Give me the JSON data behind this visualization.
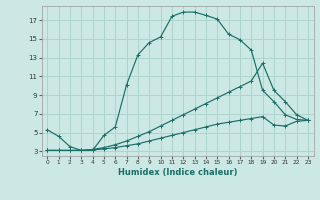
{
  "xlabel": "Humidex (Indice chaleur)",
  "bg_color": "#cce8e4",
  "line_color": "#1a6e68",
  "grid_color": "#aed4ce",
  "xlim": [
    -0.5,
    23.5
  ],
  "ylim": [
    2.5,
    18.5
  ],
  "yticks": [
    3,
    5,
    7,
    9,
    11,
    13,
    15,
    17
  ],
  "xticks": [
    0,
    1,
    2,
    3,
    4,
    5,
    6,
    7,
    8,
    9,
    10,
    11,
    12,
    13,
    14,
    15,
    16,
    17,
    18,
    19,
    20,
    21,
    22,
    23
  ],
  "line1_x": [
    0,
    1,
    2,
    3,
    4,
    5,
    6,
    7,
    8,
    9,
    10,
    11,
    12,
    13,
    14,
    15,
    16,
    17,
    18,
    19,
    20,
    21,
    22,
    23
  ],
  "line1_y": [
    5.3,
    4.6,
    3.5,
    3.1,
    3.1,
    4.7,
    5.6,
    10.1,
    13.3,
    14.6,
    15.2,
    17.4,
    17.85,
    17.85,
    17.5,
    17.1,
    15.5,
    14.9,
    13.8,
    9.5,
    8.3,
    6.9,
    6.4,
    6.3
  ],
  "line2_x": [
    0,
    1,
    2,
    3,
    4,
    5,
    6,
    7,
    8,
    9,
    10,
    11,
    12,
    13,
    14,
    15,
    16,
    17,
    18,
    19,
    20,
    21,
    22,
    23
  ],
  "line2_y": [
    3.1,
    3.1,
    3.1,
    3.1,
    3.2,
    3.4,
    3.7,
    4.1,
    4.6,
    5.1,
    5.7,
    6.3,
    6.9,
    7.5,
    8.1,
    8.7,
    9.3,
    9.9,
    10.5,
    12.4,
    9.5,
    8.3,
    6.9,
    6.3
  ],
  "line3_x": [
    0,
    1,
    2,
    3,
    4,
    5,
    6,
    7,
    8,
    9,
    10,
    11,
    12,
    13,
    14,
    15,
    16,
    17,
    18,
    19,
    20,
    21,
    22,
    23
  ],
  "line3_y": [
    3.1,
    3.1,
    3.1,
    3.1,
    3.15,
    3.25,
    3.4,
    3.6,
    3.8,
    4.1,
    4.4,
    4.7,
    5.0,
    5.3,
    5.6,
    5.9,
    6.1,
    6.3,
    6.5,
    6.7,
    5.8,
    5.7,
    6.2,
    6.3
  ]
}
